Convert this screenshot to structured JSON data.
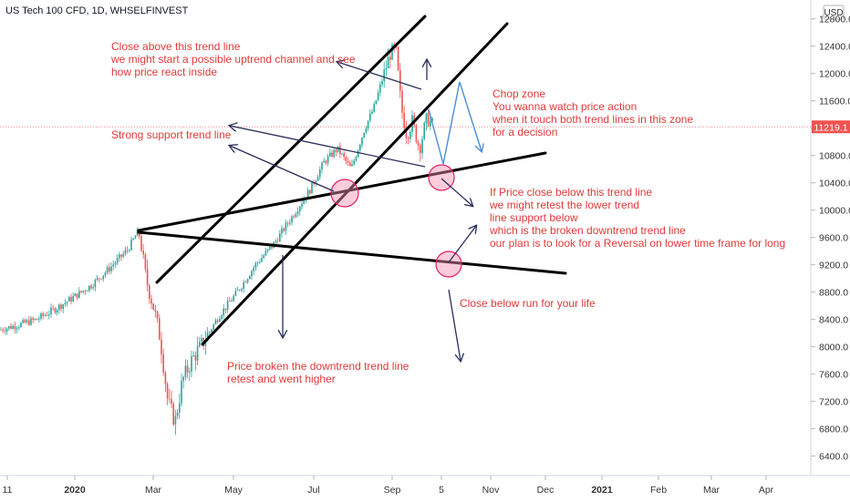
{
  "header": {
    "title": "US Tech 100 CFD, 1D, WHSELFINVEST",
    "currency": "USD"
  },
  "chart_data": {
    "type": "candlestick",
    "title": "US Tech 100 CFD, 1D, WHSELFINVEST",
    "y_ticks": [
      6400,
      6800,
      7200,
      7600,
      8000,
      8400,
      8800,
      9200,
      9600,
      10000,
      10400,
      10800,
      11200,
      11600,
      12000,
      12400,
      12800
    ],
    "y_tick_labels": [
      "6400.0",
      "6800.0",
      "7200.0",
      "7600.0",
      "8000.0",
      "8400.0",
      "8800.0",
      "9200.0",
      "9600.0",
      "10000.0",
      "10400.0",
      "10800.0",
      "11200.0",
      "11600.0",
      "12000.0",
      "12400.0",
      "12800.0"
    ],
    "ylim": [
      6150,
      13000
    ],
    "x_ticks": [
      "11",
      "2020",
      "Mar",
      "May",
      "Jul",
      "Sep",
      "5",
      "Nov",
      "Dec",
      "2021",
      "Feb",
      "Mar",
      "Apr"
    ],
    "last_price": 11219.1,
    "last_price_label": "11219.1",
    "colors": {
      "up": "#26a69a",
      "down": "#ef5350",
      "annotation": "#e03a3a",
      "last_price_bg": "#ef5350"
    },
    "price_path": [
      [
        0,
        8250
      ],
      [
        20,
        8320
      ],
      [
        40,
        8400
      ],
      [
        60,
        8550
      ],
      [
        80,
        8720
      ],
      [
        100,
        8900
      ],
      [
        120,
        9150
      ],
      [
        140,
        9420
      ],
      [
        152,
        9700
      ],
      [
        160,
        9000
      ],
      [
        168,
        8600
      ],
      [
        176,
        8100
      ],
      [
        184,
        7200
      ],
      [
        192,
        6900
      ],
      [
        200,
        7500
      ],
      [
        210,
        7800
      ],
      [
        222,
        8050
      ],
      [
        240,
        8450
      ],
      [
        260,
        8800
      ],
      [
        280,
        9200
      ],
      [
        300,
        9500
      ],
      [
        320,
        9900
      ],
      [
        340,
        10300
      ],
      [
        355,
        10700
      ],
      [
        370,
        10900
      ],
      [
        385,
        10600
      ],
      [
        400,
        11200
      ],
      [
        410,
        11500
      ],
      [
        420,
        11950
      ],
      [
        428,
        12300
      ],
      [
        434,
        12350
      ],
      [
        440,
        11500
      ],
      [
        446,
        11100
      ],
      [
        452,
        11300
      ],
      [
        460,
        10900
      ],
      [
        468,
        11350
      ],
      [
        476,
        11220
      ]
    ],
    "annotations": [
      "Close above this trend line",
      "we might start a possible uptrend channel and see",
      "how price react inside",
      "Strong support trend line",
      "Chop zone",
      "You wanna watch price action",
      "when it touch both trend lines in this zone",
      "for a decision",
      "If Price close below this trend line",
      "we might retest the lower trend",
      "line support below",
      "which is the broken downtrend trend line",
      "our plan is to look for a Reversal on lower time frame for long",
      "Close below run for your life",
      "Price broken the downtrend trend line",
      "retest and went higher"
    ]
  }
}
